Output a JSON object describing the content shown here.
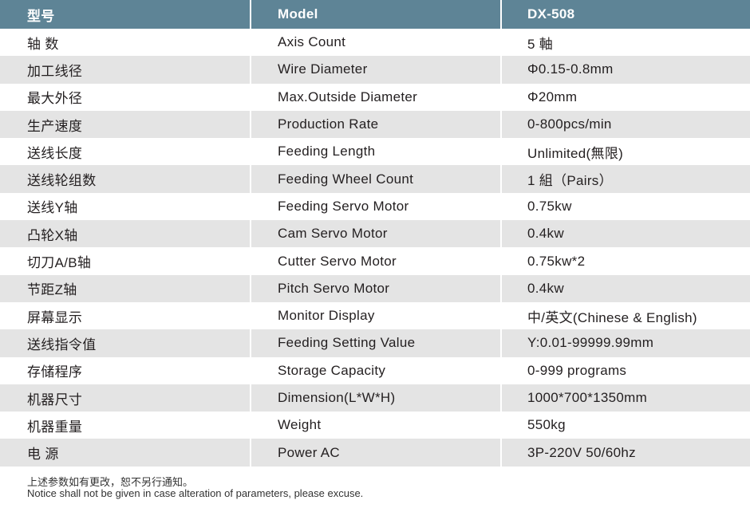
{
  "header": {
    "c1": "型号",
    "c2": "Model",
    "c3": "DX-508"
  },
  "rows": [
    {
      "c1": "轴 数",
      "c2": "Axis Count",
      "c3": "5 軸"
    },
    {
      "c1": "加工线径",
      "c2": "Wire Diameter",
      "c3": "Φ0.15-0.8mm"
    },
    {
      "c1": "最大外径",
      "c2": "Max.Outside Diameter",
      "c3": "Φ20mm"
    },
    {
      "c1": "生产速度",
      "c2": "Production Rate",
      "c3": "0-800pcs/min"
    },
    {
      "c1": "送线长度",
      "c2": "Feeding Length",
      "c3": "Unlimited(無限)"
    },
    {
      "c1": "送线轮组数",
      "c2": "Feeding Wheel Count",
      "c3": "1 組（Pairs）"
    },
    {
      "c1": "送线Y轴",
      "c2": "Feeding Servo Motor",
      "c3": "0.75kw"
    },
    {
      "c1": "凸轮X轴",
      "c2": "Cam Servo Motor",
      "c3": "0.4kw"
    },
    {
      "c1": "切刀A/B轴",
      "c2": "Cutter Servo Motor",
      "c3": "0.75kw*2"
    },
    {
      "c1": "节距Z轴",
      "c2": "Pitch Servo Motor",
      "c3": "0.4kw"
    },
    {
      "c1": "屏幕显示",
      "c2": "Monitor Display",
      "c3": "中/英文(Chinese & English)"
    },
    {
      "c1": "送线指令值",
      "c2": "Feeding Setting Value",
      "c3": "Y:0.01-99999.99mm"
    },
    {
      "c1": "存储程序",
      "c2": "Storage Capacity",
      "c3": "0-999 programs"
    },
    {
      "c1": "机器尺寸",
      "c2": "Dimension(L*W*H)",
      "c3": "1000*700*1350mm"
    },
    {
      "c1": "机器重量",
      "c2": "Weight",
      "c3": "550kg"
    },
    {
      "c1": "电 源",
      "c2": "Power AC",
      "c3": "3P-220V 50/60hz"
    }
  ],
  "notice": {
    "cn": "上述参数如有更改，恕不另行通知。",
    "en": "Notice shall not be given in case alteration of parameters, please excuse."
  },
  "colors": {
    "header_bg": "#5e8496",
    "stripe": "#e4e4e4"
  }
}
